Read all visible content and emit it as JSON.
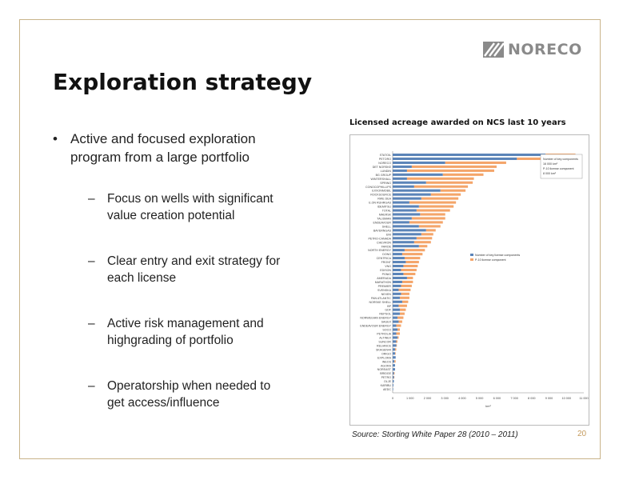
{
  "logo": {
    "text": "NORECO"
  },
  "slide": {
    "title": "Exploration strategy",
    "main_bullet": [
      "Active and focused exploration",
      "program from a large portfolio"
    ],
    "sub_bullets": [
      [
        "Focus on wells with significant",
        "value creation potential"
      ],
      [
        "Clear entry and exit strategy for",
        "each license"
      ],
      [
        "Active risk management and",
        "highgrading of portfolio"
      ],
      [
        "Operatorship when needed to",
        "get access/influence"
      ]
    ],
    "bullet_symbol": "•",
    "dash_symbol": "–",
    "source": "Source: Storting White Paper 28 (2010 – 2011)",
    "page_number": "20"
  },
  "chart_data": {
    "type": "bar",
    "orientation": "horizontal",
    "stacked": true,
    "title": "Licensed acreage awarded on NCS last 10 years",
    "xlabel": "km²",
    "xlim": [
      0,
      16000
    ],
    "xticks": [
      "0",
      "1 000",
      "2 000",
      "3 000",
      "4 000",
      "5 000",
      "6 000",
      "7 000",
      "8 000",
      "9 000",
      "10 000",
      "11 000"
    ],
    "categories": [
      "STATOIL",
      "PETORO",
      "NORECO",
      "DET NORSKE",
      "LUNDIN",
      "BG GROUP",
      "WINTERSHALL",
      "SPRING",
      "CONOCOPHILLIPS",
      "EXXONMOBIL",
      "ROCKSOURCE",
      "RWE DEA",
      "E.ON RUHRGAS",
      "IDEMITSU",
      "TOTAL",
      "MAERSK",
      "TALISMAN",
      "ENDEAVOUR",
      "SHELL",
      "BAYERNGAS",
      "ENI",
      "PETRO-CANADA",
      "CHEVRON",
      "FAROE",
      "NORTH ENERGY",
      "DONG",
      "CENTRICA",
      "FRONT",
      "VNG",
      "EDISON",
      "PGNiG",
      "AMERADA",
      "MARATHON",
      "PREMIER",
      "SVENSKA",
      "NEXEN",
      "PAN ATLANTIC",
      "NORSKE SHELL",
      "BP",
      "GDF",
      "REPSOL",
      "NORWEGIAN ENERGY",
      "SAGEX",
      "ENDEAVOUR ENERGY",
      "SOCO",
      "PETROLIA",
      "ALTINEX",
      "SUNCOR",
      "RELIANCE",
      "SKAGEN44",
      "ORIGO",
      "EXPLORA",
      "INEOS",
      "AGORA",
      "NOREAST",
      "BRIDGE",
      "PETRO",
      "OLJE",
      "KARIBU",
      "AEDC"
    ],
    "series": [
      {
        "name": "Number of key license components",
        "color": "#5b84b8",
        "values": [
          12800,
          10400,
          4400,
          1600,
          1200,
          4200,
          1200,
          2800,
          1800,
          4000,
          3200,
          2400,
          1400,
          2200,
          2000,
          2300,
          1600,
          1400,
          2200,
          2800,
          2400,
          2000,
          1800,
          2200,
          1000,
          800,
          1000,
          1100,
          900,
          700,
          900,
          1200,
          800,
          700,
          500,
          700,
          600,
          800,
          500,
          600,
          600,
          400,
          500,
          300,
          400,
          300,
          400,
          300,
          300,
          200,
          200,
          250,
          150,
          200,
          200,
          100,
          100,
          100,
          60,
          40
        ]
      },
      {
        "name": "P-10 license component",
        "color": "#f4a56a",
        "values": [
          2500,
          2600,
          5100,
          7100,
          7300,
          3400,
          5600,
          3900,
          4500,
          2100,
          2500,
          3100,
          3900,
          2900,
          2800,
          2100,
          2800,
          2800,
          1800,
          800,
          1000,
          1300,
          1400,
          700,
          1700,
          1700,
          1300,
          1100,
          1200,
          1300,
          1000,
          500,
          900,
          900,
          1000,
          700,
          800,
          500,
          700,
          500,
          400,
          500,
          300,
          400,
          200,
          300,
          100,
          100,
          50,
          100,
          50,
          0,
          100,
          0,
          0,
          60,
          40,
          0,
          0,
          0
        ]
      }
    ],
    "annotation": [
      "Number of key components",
      "16 000 km²",
      "P-10 license component",
      "8 000 km²"
    ],
    "legend": "middle-right",
    "grid": false
  }
}
